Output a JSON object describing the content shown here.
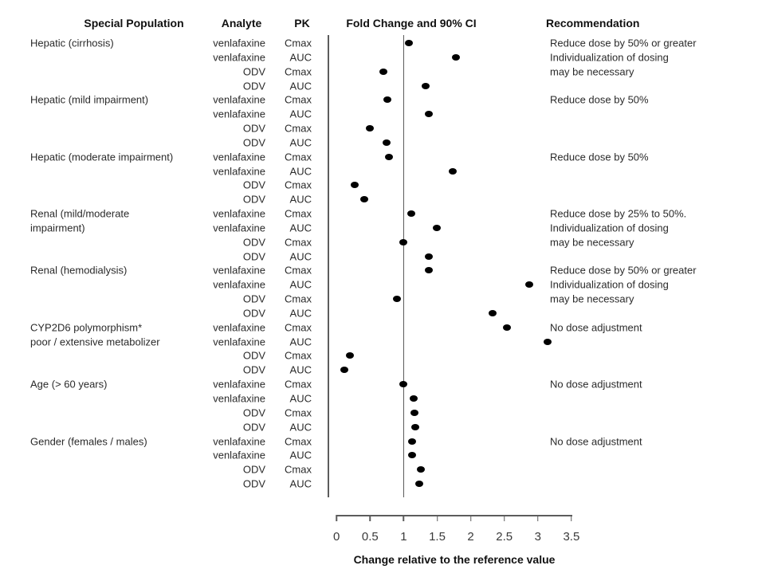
{
  "headers": {
    "special_population": "Special Population",
    "analyte": "Analyte",
    "pk": "PK",
    "fold_change": "Fold Change and 90% CI",
    "recommendation": "Recommendation"
  },
  "chart_data": {
    "type": "scatter",
    "title": "Fold Change and 90% CI",
    "xlabel": "Change relative to the reference value",
    "x_ticks": [
      "0",
      "0.5",
      "1",
      "1.5",
      "2",
      "2.5",
      "3",
      "3.5"
    ],
    "x_tick_values": [
      0,
      0.5,
      1,
      1.5,
      2,
      2.5,
      3,
      3.5
    ],
    "xlim": [
      -0.13,
      3.63
    ],
    "reference_line_x": 1,
    "legend_position": "none",
    "grid": false,
    "marker_color": "#000000",
    "axis_line_color": "#5c5c5c",
    "groups": [
      {
        "population": [
          "Hepatic (cirrhosis)"
        ],
        "recommendation": [
          "Reduce dose by 50% or greater",
          "Individualization of dosing",
          "may be necessary"
        ],
        "rows": [
          {
            "analyte": "venlafaxine",
            "pk": "Cmax",
            "fold_change": 1.08
          },
          {
            "analyte": "venlafaxine",
            "pk": "AUC",
            "fold_change": 1.78
          },
          {
            "analyte": "ODV",
            "pk": "Cmax",
            "fold_change": 0.7
          },
          {
            "analyte": "ODV",
            "pk": "AUC",
            "fold_change": 1.33
          }
        ]
      },
      {
        "population": [
          "Hepatic (mild impairment)"
        ],
        "recommendation": [
          "Reduce dose by 50%"
        ],
        "rows": [
          {
            "analyte": "venlafaxine",
            "pk": "Cmax",
            "fold_change": 0.76
          },
          {
            "analyte": "venlafaxine",
            "pk": "AUC",
            "fold_change": 1.38
          },
          {
            "analyte": "ODV",
            "pk": "Cmax",
            "fold_change": 0.5
          },
          {
            "analyte": "ODV",
            "pk": "AUC",
            "fold_change": 0.74
          }
        ]
      },
      {
        "population": [
          "Hepatic (moderate impairment)"
        ],
        "recommendation": [
          "Reduce dose by 50%"
        ],
        "rows": [
          {
            "analyte": "venlafaxine",
            "pk": "Cmax",
            "fold_change": 0.78
          },
          {
            "analyte": "venlafaxine",
            "pk": "AUC",
            "fold_change": 1.73
          },
          {
            "analyte": "ODV",
            "pk": "Cmax",
            "fold_change": 0.27
          },
          {
            "analyte": "ODV",
            "pk": "AUC",
            "fold_change": 0.41
          }
        ]
      },
      {
        "population": [
          "Renal (mild/moderate",
          "impairment)"
        ],
        "recommendation": [
          "Reduce dose by 25% to 50%.",
          "Individualization of dosing",
          "may be necessary"
        ],
        "rows": [
          {
            "analyte": "venlafaxine",
            "pk": "Cmax",
            "fold_change": 1.11
          },
          {
            "analyte": "venlafaxine",
            "pk": "AUC",
            "fold_change": 1.49
          },
          {
            "analyte": "ODV",
            "pk": "Cmax",
            "fold_change": 1.0
          },
          {
            "analyte": "ODV",
            "pk": "AUC",
            "fold_change": 1.38
          }
        ]
      },
      {
        "population": [
          "Renal (hemodialysis)"
        ],
        "recommendation": [
          "Reduce dose by 50% or greater",
          "Individualization of dosing",
          "may be necessary"
        ],
        "rows": [
          {
            "analyte": "venlafaxine",
            "pk": "Cmax",
            "fold_change": 1.37
          },
          {
            "analyte": "venlafaxine",
            "pk": "AUC",
            "fold_change": 2.87
          },
          {
            "analyte": "ODV",
            "pk": "Cmax",
            "fold_change": 0.9
          },
          {
            "analyte": "ODV",
            "pk": "AUC",
            "fold_change": 2.32
          }
        ]
      },
      {
        "population": [
          "CYP2D6 polymorphism*",
          "poor / extensive metabolizer"
        ],
        "recommendation": [
          "No dose adjustment"
        ],
        "rows": [
          {
            "analyte": "venlafaxine",
            "pk": "Cmax",
            "fold_change": 2.54
          },
          {
            "analyte": "venlafaxine",
            "pk": "AUC",
            "fold_change": 3.15
          },
          {
            "analyte": "ODV",
            "pk": "Cmax",
            "fold_change": 0.2
          },
          {
            "analyte": "ODV",
            "pk": "AUC",
            "fold_change": 0.12
          }
        ]
      },
      {
        "population": [
          "Age (> 60 years)"
        ],
        "recommendation": [
          "No dose adjustment"
        ],
        "rows": [
          {
            "analyte": "venlafaxine",
            "pk": "Cmax",
            "fold_change": 1.0
          },
          {
            "analyte": "venlafaxine",
            "pk": "AUC",
            "fold_change": 1.15
          },
          {
            "analyte": "ODV",
            "pk": "Cmax",
            "fold_change": 1.16
          },
          {
            "analyte": "ODV",
            "pk": "AUC",
            "fold_change": 1.17
          }
        ]
      },
      {
        "population": [
          "Gender (females / males)"
        ],
        "recommendation": [
          "No dose adjustment"
        ],
        "rows": [
          {
            "analyte": "venlafaxine",
            "pk": "Cmax",
            "fold_change": 1.12
          },
          {
            "analyte": "venlafaxine",
            "pk": "AUC",
            "fold_change": 1.13
          },
          {
            "analyte": "ODV",
            "pk": "Cmax",
            "fold_change": 1.26
          },
          {
            "analyte": "ODV",
            "pk": "AUC",
            "fold_change": 1.23
          }
        ]
      }
    ]
  }
}
